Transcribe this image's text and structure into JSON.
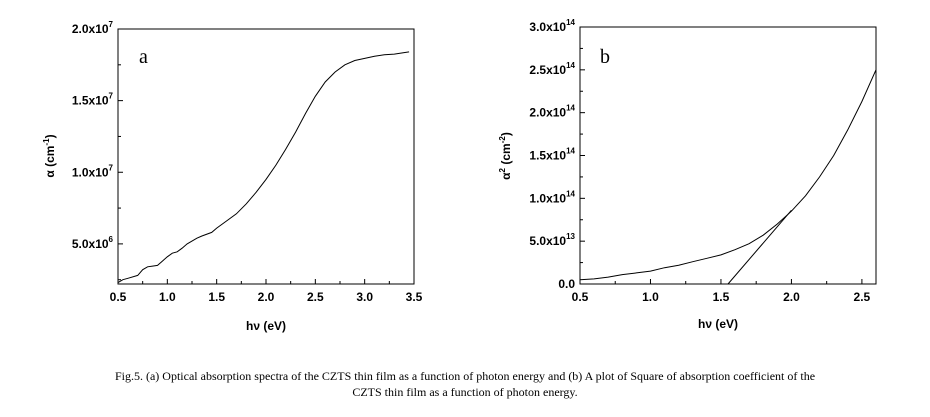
{
  "chart_data": [
    {
      "type": "line",
      "panel": "a",
      "panel_letter": "a",
      "xlabel": "hν (eV)",
      "ylabel": {
        "base": "α (cm",
        "sup": "-1",
        "tail": ")"
      },
      "xlim": [
        0.5,
        3.5
      ],
      "ylim": [
        2200000,
        20000000
      ],
      "xticks": [
        {
          "value": 0.5,
          "label": "0.5"
        },
        {
          "value": 1.0,
          "label": "1.0"
        },
        {
          "value": 1.5,
          "label": "1.5"
        },
        {
          "value": 2.0,
          "label": "2.0"
        },
        {
          "value": 2.5,
          "label": "2.5"
        },
        {
          "value": 3.0,
          "label": "3.0"
        },
        {
          "value": 3.5,
          "label": "3.5"
        }
      ],
      "yticks": [
        {
          "value": 5000000,
          "mant": "5.0x10",
          "exp": "6"
        },
        {
          "value": 10000000,
          "mant": "1.0x10",
          "exp": "7"
        },
        {
          "value": 15000000,
          "mant": "1.5x10",
          "exp": "7"
        },
        {
          "value": 20000000,
          "mant": "2.0x10",
          "exp": "7"
        }
      ],
      "series": [
        {
          "name": "alpha",
          "x": [
            0.5,
            0.55,
            0.6,
            0.7,
            0.75,
            0.8,
            0.85,
            0.9,
            0.95,
            1.0,
            1.05,
            1.1,
            1.15,
            1.2,
            1.3,
            1.35,
            1.45,
            1.5,
            1.6,
            1.7,
            1.8,
            1.9,
            2.0,
            2.1,
            2.2,
            2.3,
            2.4,
            2.5,
            2.6,
            2.7,
            2.8,
            2.9,
            3.0,
            3.1,
            3.2,
            3.3,
            3.4,
            3.45
          ],
          "y": [
            2300000,
            2500000,
            2600000,
            2800000,
            3200000,
            3400000,
            3450000,
            3500000,
            3800000,
            4100000,
            4350000,
            4450000,
            4700000,
            5000000,
            5400000,
            5550000,
            5800000,
            6100000,
            6600000,
            7100000,
            7800000,
            8600000,
            9500000,
            10500000,
            11600000,
            12800000,
            14100000,
            15300000,
            16300000,
            17000000,
            17500000,
            17800000,
            17950000,
            18100000,
            18200000,
            18250000,
            18350000,
            18400000
          ]
        }
      ]
    },
    {
      "type": "line",
      "panel": "b",
      "panel_letter": "b",
      "xlabel": "hν (eV)",
      "ylabel": {
        "base": "α",
        "sup1": "2",
        "mid": " (cm",
        "sup2": "-2",
        "tail": ")"
      },
      "xlim": [
        0.5,
        2.6
      ],
      "ylim": [
        0,
        300000000000000.0
      ],
      "xticks": [
        {
          "value": 0.5,
          "label": "0.5"
        },
        {
          "value": 1.0,
          "label": "1.0"
        },
        {
          "value": 1.5,
          "label": "1.5"
        },
        {
          "value": 2.0,
          "label": "2.0"
        },
        {
          "value": 2.5,
          "label": "2.5"
        }
      ],
      "yticks": [
        {
          "value": 0,
          "mant": "0.0",
          "exp": ""
        },
        {
          "value": 50000000000000.0,
          "mant": "5.0x10",
          "exp": "13"
        },
        {
          "value": 100000000000000.0,
          "mant": "1.0x10",
          "exp": "14"
        },
        {
          "value": 150000000000000.0,
          "mant": "1.5x10",
          "exp": "14"
        },
        {
          "value": 200000000000000.0,
          "mant": "2.0x10",
          "exp": "14"
        },
        {
          "value": 250000000000000.0,
          "mant": "2.5x10",
          "exp": "14"
        },
        {
          "value": 300000000000000.0,
          "mant": "3.0x10",
          "exp": "14"
        }
      ],
      "series": [
        {
          "name": "alpha squared",
          "x": [
            0.5,
            0.6,
            0.7,
            0.8,
            0.9,
            1.0,
            1.1,
            1.2,
            1.3,
            1.4,
            1.5,
            1.6,
            1.7,
            1.8,
            1.9,
            2.0,
            2.1,
            2.2,
            2.3,
            2.4,
            2.5,
            2.6
          ],
          "y": [
            5000000000000.0,
            6000000000000.0,
            8000000000000.0,
            11000000000000.0,
            13000000000000.0,
            15000000000000.0,
            19000000000000.0,
            22000000000000.0,
            26000000000000.0,
            30000000000000.0,
            34000000000000.0,
            40000000000000.0,
            47000000000000.0,
            57000000000000.0,
            70000000000000.0,
            85000000000000.0,
            103000000000000.0,
            125000000000000.0,
            150000000000000.0,
            180000000000000.0,
            213000000000000.0,
            250000000000000.0
          ]
        },
        {
          "name": "linear fit",
          "x": [
            1.55,
            2.0
          ],
          "y": [
            0,
            86000000000000.0
          ]
        }
      ]
    }
  ],
  "caption": {
    "line1": "Fig.5.  (a)  Optical absorption spectra of the CZTS thin film as  a function of photon energy and (b) A plot of Square of absorption coefficient of the",
    "line2": "CZTS thin film as a function of photon energy."
  }
}
